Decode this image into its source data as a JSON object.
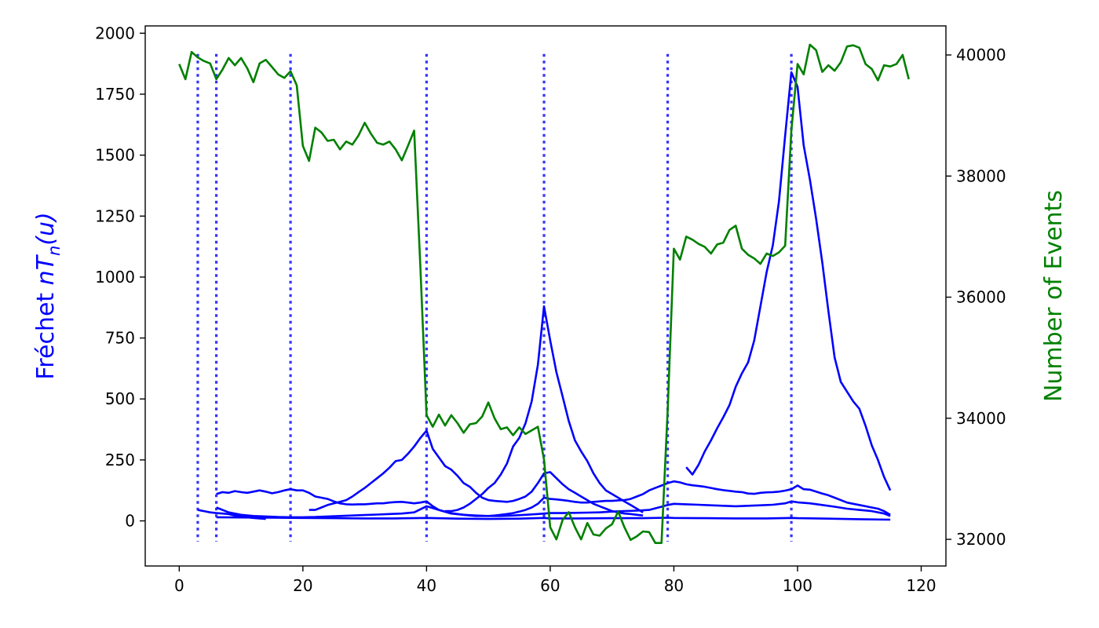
{
  "chart_data": {
    "type": "line",
    "xlim": [
      -5.5,
      124
    ],
    "x_ticks": [
      0,
      20,
      40,
      60,
      80,
      100,
      120
    ],
    "left_axis": {
      "label": "Fréchet nTn(u)",
      "label_main": "Fréchet ",
      "label_n1": "nT",
      "label_sub": "n",
      "label_rest": "(u)",
      "color": "#0000ff",
      "ylim": [
        -185,
        2030
      ],
      "ticks": [
        0,
        250,
        500,
        750,
        1000,
        1250,
        1500,
        1750,
        2000
      ]
    },
    "right_axis": {
      "label": "Number of Events",
      "color": "#008000",
      "ylim": [
        31560,
        40480
      ],
      "ticks": [
        32000,
        34000,
        36000,
        38000,
        40000
      ]
    },
    "vertical_lines": {
      "x": [
        3,
        6,
        18,
        40,
        59,
        79,
        99
      ],
      "color": "#3333ff",
      "style": "dotted"
    },
    "series": [
      {
        "axis": "left",
        "color": "#0000ff",
        "x": [
          82,
          83,
          84,
          85,
          86,
          87,
          88,
          89,
          90,
          91,
          92,
          93,
          94,
          95,
          96,
          97,
          98,
          99,
          100,
          101,
          102,
          103,
          104,
          105,
          106,
          107,
          108,
          109,
          110,
          111,
          112,
          113,
          114,
          115
        ],
        "y": [
          220,
          190,
          230,
          285,
          330,
          380,
          425,
          475,
          550,
          605,
          650,
          740,
          880,
          1020,
          1130,
          1310,
          1580,
          1840,
          1780,
          1540,
          1400,
          1240,
          1060,
          860,
          670,
          570,
          530,
          490,
          460,
          390,
          310,
          250,
          180,
          125
        ]
      },
      {
        "axis": "left",
        "color": "#0000ff",
        "x": [
          43,
          44,
          45,
          46,
          47,
          48,
          49,
          50,
          51,
          52,
          53,
          54,
          55,
          56,
          57,
          58,
          59,
          60,
          61,
          62,
          63,
          64,
          65,
          66,
          67,
          68,
          69,
          70,
          71,
          72,
          73,
          74,
          75
        ],
        "y": [
          40,
          40,
          45,
          55,
          70,
          90,
          110,
          135,
          155,
          190,
          235,
          305,
          340,
          400,
          490,
          640,
          880,
          740,
          610,
          510,
          410,
          330,
          285,
          245,
          195,
          155,
          125,
          110,
          95,
          80,
          65,
          50,
          35
        ]
      },
      {
        "axis": "left",
        "color": "#0000ff",
        "x": [
          21,
          22,
          23,
          24,
          25,
          26,
          27,
          28,
          29,
          30,
          31,
          32,
          33,
          34,
          35,
          36,
          37,
          38,
          39,
          40,
          41,
          42,
          43,
          44,
          45,
          46,
          47,
          48,
          49,
          50,
          51,
          52,
          53,
          54,
          55,
          56,
          57,
          58,
          59,
          60,
          61,
          62,
          63,
          64,
          65,
          66,
          67,
          68,
          69,
          70,
          71,
          72,
          73,
          74,
          75
        ],
        "y": [
          45,
          45,
          55,
          65,
          72,
          78,
          85,
          100,
          118,
          135,
          155,
          175,
          195,
          218,
          245,
          250,
          275,
          305,
          340,
          370,
          295,
          260,
          225,
          210,
          185,
          155,
          140,
          115,
          95,
          85,
          82,
          80,
          78,
          82,
          90,
          100,
          120,
          155,
          195,
          200,
          175,
          150,
          130,
          115,
          100,
          85,
          70,
          60,
          50,
          40,
          35,
          30,
          28,
          25,
          22
        ]
      },
      {
        "axis": "left",
        "color": "#0000ff",
        "x": [
          6,
          7,
          8,
          9,
          10,
          11,
          12,
          13,
          14,
          15,
          16,
          17,
          18,
          19,
          20,
          21,
          22,
          23,
          24,
          25,
          26,
          27,
          28,
          29,
          30,
          31,
          32,
          33,
          34,
          35,
          36,
          37,
          38,
          39,
          40,
          41,
          42,
          43,
          44,
          45,
          46,
          47,
          48,
          49,
          50,
          51,
          52,
          53,
          54,
          55,
          56,
          57,
          58,
          59,
          60,
          61,
          62,
          63,
          64,
          65,
          66,
          67,
          68,
          69,
          70,
          71,
          72,
          73,
          74,
          75,
          76,
          77,
          78,
          79,
          80,
          81,
          82,
          83,
          84,
          85,
          86,
          87,
          88,
          89,
          90,
          91,
          92,
          93,
          94,
          95,
          96,
          97,
          98,
          99,
          100,
          101,
          102,
          103,
          104,
          105,
          106,
          107,
          108,
          109,
          110,
          111,
          112,
          113,
          114,
          115
        ],
        "y": [
          110,
          118,
          115,
          122,
          118,
          115,
          120,
          125,
          120,
          113,
          118,
          125,
          130,
          125,
          125,
          115,
          100,
          95,
          90,
          80,
          72,
          68,
          67,
          68,
          68,
          70,
          72,
          72,
          75,
          77,
          78,
          75,
          72,
          75,
          80,
          60,
          45,
          38,
          32,
          28,
          25,
          22,
          20,
          20,
          20,
          22,
          25,
          28,
          32,
          38,
          45,
          55,
          70,
          95,
          90,
          88,
          85,
          82,
          78,
          75,
          75,
          78,
          80,
          82,
          82,
          84,
          85,
          90,
          100,
          110,
          125,
          135,
          145,
          155,
          162,
          158,
          150,
          146,
          143,
          140,
          135,
          130,
          126,
          123,
          120,
          118,
          112,
          111,
          115,
          117,
          118,
          120,
          124,
          130,
          145,
          130,
          128,
          120,
          112,
          105,
          95,
          85,
          75,
          70,
          65,
          60,
          55,
          50,
          40,
          25
        ]
      },
      {
        "axis": "left",
        "color": "#0000ff",
        "x": [
          3,
          4,
          5,
          6,
          7,
          8,
          9,
          10,
          11,
          12,
          13,
          14
        ],
        "y": [
          45,
          40,
          35,
          32,
          30,
          28,
          22,
          18,
          15,
          12,
          10,
          8
        ]
      },
      {
        "axis": "left",
        "color": "#0000ff",
        "x": [
          6,
          8,
          10,
          12,
          14,
          16,
          18,
          20,
          22,
          24,
          26,
          28,
          30,
          32,
          34,
          36,
          38,
          40,
          42,
          44,
          46,
          48,
          50,
          52,
          54,
          56,
          58,
          59,
          60,
          62,
          64,
          66,
          68,
          70,
          72,
          74,
          76,
          78,
          79,
          80,
          82,
          84,
          86,
          88,
          90,
          92,
          94,
          96,
          98,
          99,
          100,
          102,
          104,
          106,
          108,
          110,
          112,
          114,
          115
        ],
        "y": [
          55,
          35,
          25,
          20,
          18,
          16,
          15,
          15,
          16,
          18,
          20,
          22,
          24,
          26,
          28,
          30,
          35,
          60,
          45,
          30,
          25,
          22,
          20,
          20,
          22,
          25,
          28,
          30,
          32,
          32,
          33,
          34,
          35,
          38,
          40,
          42,
          45,
          58,
          65,
          70,
          68,
          66,
          64,
          62,
          60,
          62,
          64,
          66,
          72,
          80,
          76,
          72,
          65,
          58,
          50,
          45,
          40,
          30,
          20
        ]
      },
      {
        "axis": "left",
        "color": "#0000ff",
        "x": [
          6,
          10,
          15,
          20,
          25,
          30,
          35,
          40,
          45,
          50,
          55,
          59,
          60,
          65,
          70,
          75,
          79,
          80,
          85,
          90,
          95,
          99,
          100,
          105,
          110,
          115
        ],
        "y": [
          15,
          14,
          13,
          12,
          11,
          10,
          10,
          12,
          9,
          8,
          9,
          12,
          10,
          10,
          11,
          11,
          13,
          12,
          11,
          10,
          10,
          12,
          11,
          9,
          7,
          5
        ]
      },
      {
        "name": "Number of Events",
        "axis": "right",
        "color": "#008000",
        "x": [
          0,
          1,
          2,
          3,
          4,
          5,
          6,
          7,
          8,
          9,
          10,
          11,
          12,
          13,
          14,
          15,
          16,
          17,
          18,
          19,
          20,
          21,
          22,
          23,
          24,
          25,
          26,
          27,
          28,
          29,
          30,
          31,
          32,
          33,
          34,
          35,
          36,
          37,
          38,
          39,
          40,
          41,
          42,
          43,
          44,
          45,
          46,
          47,
          48,
          49,
          50,
          51,
          52,
          53,
          54,
          55,
          56,
          57,
          58,
          59,
          60,
          61,
          62,
          63,
          64,
          65,
          66,
          67,
          68,
          69,
          70,
          71,
          72,
          73,
          74,
          75,
          76,
          77,
          78,
          79,
          80,
          81,
          82,
          83,
          84,
          85,
          86,
          87,
          88,
          89,
          90,
          91,
          92,
          93,
          94,
          95,
          96,
          97,
          98,
          99,
          100,
          101,
          102,
          103,
          104,
          105,
          106,
          107,
          108,
          109,
          110,
          111,
          112,
          113,
          114,
          115,
          116,
          117,
          118
        ],
        "y": [
          39850,
          39600,
          40050,
          39960,
          39900,
          39860,
          39600,
          39760,
          39950,
          39830,
          39950,
          39780,
          39550,
          39860,
          39920,
          39800,
          39680,
          39620,
          39730,
          39500,
          38500,
          38250,
          38800,
          38720,
          38580,
          38600,
          38440,
          38570,
          38520,
          38670,
          38880,
          38700,
          38550,
          38520,
          38570,
          38440,
          38260,
          38500,
          38750,
          36500,
          34050,
          33860,
          34060,
          33880,
          34050,
          33920,
          33760,
          33900,
          33920,
          34030,
          34260,
          34000,
          33820,
          33850,
          33720,
          33850,
          33740,
          33800,
          33860,
          33320,
          32200,
          32000,
          32320,
          32450,
          32200,
          32000,
          32270,
          32080,
          32060,
          32180,
          32250,
          32460,
          32200,
          31990,
          32050,
          32130,
          32120,
          31940,
          31940,
          34150,
          36800,
          36620,
          37000,
          36950,
          36880,
          36830,
          36720,
          36870,
          36900,
          37110,
          37180,
          36800,
          36700,
          36640,
          36550,
          36720,
          36680,
          36740,
          36850,
          38750,
          39850,
          39680,
          40170,
          40080,
          39720,
          39830,
          39740,
          39880,
          40140,
          40160,
          40120,
          39850,
          39770,
          39580,
          39830,
          39810,
          39850,
          40000,
          39600
        ]
      }
    ]
  }
}
